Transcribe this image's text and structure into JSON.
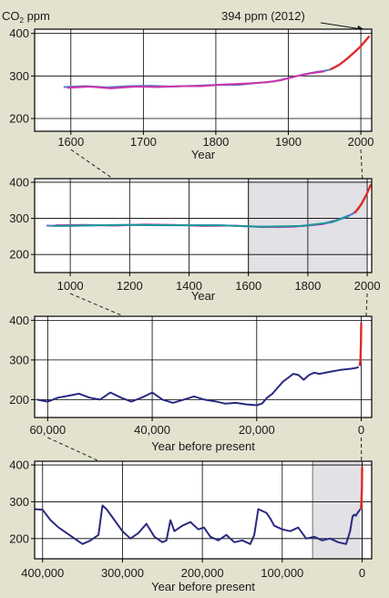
{
  "colors": {
    "background": "#e3e2cf",
    "plot_bg": "#ffffff",
    "highlight": "#e1e1e6",
    "grid": "#000000",
    "modern": "#e02a2a",
    "icecore": "#2a2a80",
    "series_blue": "#5577cc",
    "series_magenta": "#cc33aa",
    "series_teal": "#1a9a9a",
    "zoom_line": "#222222"
  },
  "annotation": "394 ppm (2012)",
  "chart_data": [
    {
      "type": "line",
      "ylabel_main": "CO",
      "ylabel_sub": "2",
      "ylabel_rest": " ppm",
      "xlabel": "Year",
      "xlim": [
        1550,
        2015
      ],
      "ylim": [
        170,
        410
      ],
      "xticks": [
        1600,
        1700,
        1800,
        1900,
        2000
      ],
      "xtick_labels": [
        "1600",
        "1700",
        "1800",
        "1900",
        "2000"
      ],
      "yticks": [
        200,
        300,
        400
      ],
      "ytick_labels": [
        "200",
        "300",
        "400"
      ],
      "grid": true,
      "series": [
        {
          "color_key": "series_blue",
          "x": [
            1590,
            1620,
            1650,
            1680,
            1710,
            1740,
            1770,
            1800,
            1830,
            1860,
            1880,
            1900,
            1920,
            1940,
            1950,
            1958
          ],
          "y": [
            274,
            276,
            273,
            276,
            277,
            275,
            277,
            279,
            279,
            284,
            287,
            295,
            303,
            310,
            312,
            315
          ]
        },
        {
          "color_key": "series_magenta",
          "x": [
            1595,
            1625,
            1655,
            1690,
            1720,
            1750,
            1780,
            1810,
            1840,
            1870,
            1890,
            1910,
            1930,
            1950
          ],
          "y": [
            272,
            275,
            271,
            275,
            274,
            276,
            276,
            280,
            282,
            285,
            290,
            299,
            306,
            311
          ]
        },
        {
          "color_key": "modern",
          "x": [
            1958,
            1970,
            1980,
            1990,
            2000,
            2012
          ],
          "y": [
            315,
            326,
            339,
            354,
            370,
            394
          ]
        }
      ]
    },
    {
      "type": "line",
      "xlabel": "Year",
      "xlim": [
        880,
        2015
      ],
      "ylim": [
        150,
        410
      ],
      "highlight": [
        1600,
        2000
      ],
      "xticks": [
        1000,
        1200,
        1400,
        1600,
        1800,
        2000
      ],
      "xtick_labels": [
        "1000",
        "1200",
        "1400",
        "1600",
        "1800",
        "2000"
      ],
      "yticks": [
        200,
        300,
        400
      ],
      "ytick_labels": [
        "200",
        "300",
        "400"
      ],
      "grid": true,
      "series": [
        {
          "color_key": "series_blue",
          "x": [
            920,
            1000,
            1100,
            1200,
            1300,
            1400,
            1500,
            1600,
            1700,
            1800,
            1850,
            1900,
            1950,
            1970,
            1990
          ],
          "y": [
            280,
            279,
            281,
            282,
            281,
            281,
            281,
            278,
            276,
            280,
            285,
            296,
            312,
            326,
            354
          ]
        },
        {
          "color_key": "series_magenta",
          "x": [
            950,
            1050,
            1150,
            1250,
            1350,
            1450,
            1550,
            1650,
            1750,
            1850,
            1900
          ],
          "y": [
            281,
            282,
            280,
            283,
            282,
            279,
            280,
            276,
            277,
            284,
            295
          ]
        },
        {
          "color_key": "series_teal",
          "x": [
            940,
            1080,
            1220,
            1360,
            1500,
            1640,
            1780,
            1880,
            1940
          ],
          "y": [
            279,
            281,
            282,
            281,
            281,
            277,
            279,
            289,
            307
          ]
        },
        {
          "color_key": "modern",
          "x": [
            1958,
            1980,
            2000,
            2012
          ],
          "y": [
            315,
            339,
            370,
            394
          ]
        }
      ]
    },
    {
      "type": "line",
      "xlabel": "Year before present",
      "xlim": [
        62500,
        -2000
      ],
      "ylim": [
        155,
        410
      ],
      "xticks": [
        60000,
        40000,
        20000,
        0
      ],
      "xtick_labels": [
        "60,000",
        "40,000",
        "20,000",
        "0"
      ],
      "yticks": [
        200,
        300,
        400
      ],
      "ytick_labels": [
        "200",
        "300",
        "400"
      ],
      "grid": true,
      "series": [
        {
          "color_key": "icecore",
          "x": [
            62000,
            60000,
            58000,
            56000,
            54000,
            52000,
            50000,
            48000,
            46000,
            44000,
            42000,
            40000,
            38000,
            36000,
            34000,
            32000,
            30000,
            28000,
            26000,
            24000,
            22000,
            20000,
            19000,
            18000,
            17000,
            16000,
            15000,
            14000,
            13000,
            12000,
            11000,
            10000,
            9000,
            8000,
            6000,
            4000,
            2000,
            1000,
            500
          ],
          "y": [
            200,
            195,
            205,
            210,
            215,
            205,
            200,
            218,
            205,
            195,
            205,
            218,
            200,
            192,
            200,
            208,
            200,
            196,
            190,
            192,
            188,
            186,
            190,
            205,
            215,
            230,
            245,
            255,
            265,
            262,
            250,
            262,
            268,
            265,
            270,
            275,
            278,
            280,
            282
          ]
        },
        {
          "color_key": "modern",
          "x": [
            300,
            150,
            60,
            0
          ],
          "y": [
            285,
            300,
            340,
            394
          ]
        }
      ]
    },
    {
      "type": "line",
      "xlabel": "Year before present",
      "xlim": [
        410000,
        -12000
      ],
      "ylim": [
        145,
        410
      ],
      "highlight": [
        62000,
        0
      ],
      "xticks": [
        400000,
        300000,
        200000,
        100000,
        0
      ],
      "xtick_labels": [
        "400,000",
        "300,000",
        "200,000",
        "100,000",
        "0"
      ],
      "yticks": [
        200,
        300,
        400
      ],
      "ytick_labels": [
        "200",
        "300",
        "400"
      ],
      "grid": true,
      "series": [
        {
          "color_key": "icecore",
          "x": [
            410000,
            400000,
            390000,
            380000,
            370000,
            360000,
            350000,
            340000,
            330000,
            325000,
            320000,
            310000,
            300000,
            290000,
            280000,
            270000,
            260000,
            250000,
            245000,
            240000,
            235000,
            225000,
            215000,
            205000,
            198000,
            190000,
            180000,
            170000,
            160000,
            150000,
            140000,
            135000,
            130000,
            125000,
            120000,
            115000,
            110000,
            100000,
            90000,
            80000,
            70000,
            60000,
            50000,
            40000,
            30000,
            20000,
            15000,
            12000,
            10000,
            8000,
            5000,
            2000
          ],
          "y": [
            280,
            278,
            250,
            230,
            215,
            200,
            185,
            195,
            210,
            290,
            280,
            250,
            220,
            200,
            215,
            240,
            205,
            190,
            195,
            250,
            220,
            235,
            245,
            225,
            230,
            205,
            195,
            210,
            190,
            195,
            185,
            210,
            280,
            275,
            270,
            255,
            235,
            225,
            220,
            230,
            200,
            205,
            195,
            200,
            190,
            185,
            220,
            260,
            265,
            262,
            272,
            280
          ]
        },
        {
          "color_key": "modern",
          "x": [
            1500,
            800,
            200,
            0
          ],
          "y": [
            280,
            300,
            340,
            394
          ]
        }
      ]
    }
  ]
}
